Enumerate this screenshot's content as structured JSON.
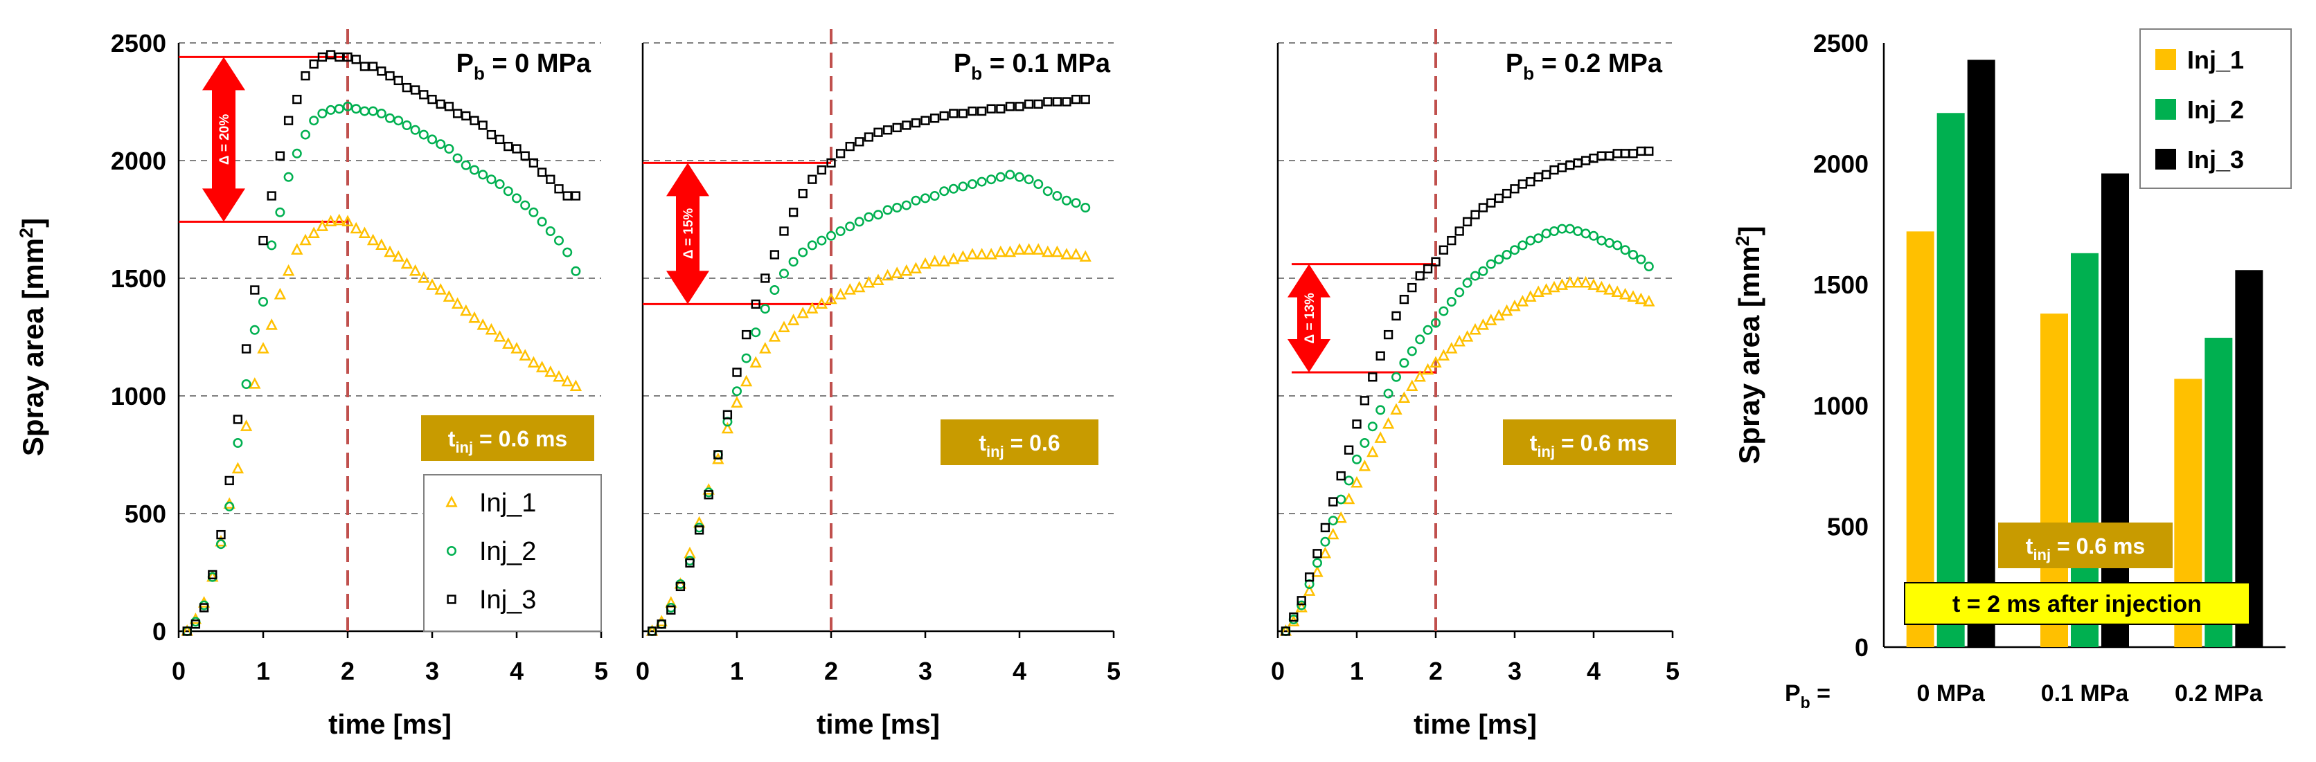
{
  "colors": {
    "inj1": "#FFC000",
    "inj2": "#00B050",
    "inj3": "#000000",
    "accent_red": "#FF0000",
    "dashed_line": "#C0504D",
    "gold_box": "#C89B00",
    "highlight": "#FFFF00",
    "grid": "#808080"
  },
  "chart_data": [
    {
      "type": "scatter",
      "title_prefix": "P",
      "title_sub": "b",
      "title_suffix": " = 0 MPa",
      "xlabel": "time [ms]",
      "ylabel_main": "Spray area [mm",
      "ylabel_sup": "2",
      "ylabel_end": "]",
      "xlim": [
        0,
        5
      ],
      "ylim": [
        0,
        2500
      ],
      "xticks": [
        "0",
        "1",
        "2",
        "3",
        "4",
        "5"
      ],
      "yticks": [
        "0",
        "500",
        "1000",
        "1500",
        "2000",
        "2500"
      ],
      "vline_x": 2,
      "delta": {
        "label": "Δ = 20%",
        "upper": 2440,
        "lower": 1740
      },
      "tinj": {
        "main": "t",
        "sub": "inj",
        "rest": " = 0.6 ms"
      },
      "legend": [
        "Inj_1",
        "Inj_2",
        "Inj_3"
      ],
      "series": [
        {
          "name": "Inj_1",
          "marker": "triangle",
          "x": [
            0.1,
            0.2,
            0.3,
            0.4,
            0.5,
            0.6,
            0.7,
            0.8,
            0.9,
            1.0,
            1.1,
            1.2,
            1.3,
            1.4,
            1.5,
            1.6,
            1.7,
            1.8,
            1.9,
            2.0,
            2.1,
            2.2,
            2.3,
            2.4,
            2.5,
            2.6,
            2.7,
            2.8,
            2.9,
            3.0,
            3.1,
            3.2,
            3.3,
            3.4,
            3.5,
            3.6,
            3.7,
            3.8,
            3.9,
            4.0,
            4.1,
            4.2,
            4.3,
            4.4,
            4.5,
            4.6,
            4.7
          ],
          "y": [
            0,
            50,
            120,
            230,
            380,
            540,
            690,
            870,
            1050,
            1200,
            1300,
            1430,
            1530,
            1620,
            1660,
            1690,
            1720,
            1740,
            1745,
            1740,
            1710,
            1690,
            1660,
            1640,
            1610,
            1590,
            1560,
            1530,
            1500,
            1470,
            1450,
            1420,
            1390,
            1360,
            1330,
            1300,
            1280,
            1250,
            1220,
            1200,
            1170,
            1140,
            1120,
            1100,
            1080,
            1060,
            1040
          ]
        },
        {
          "name": "Inj_2",
          "marker": "circle",
          "x": [
            0.1,
            0.2,
            0.3,
            0.4,
            0.5,
            0.6,
            0.7,
            0.8,
            0.9,
            1.0,
            1.1,
            1.2,
            1.3,
            1.4,
            1.5,
            1.6,
            1.7,
            1.8,
            1.9,
            2.0,
            2.1,
            2.2,
            2.3,
            2.4,
            2.5,
            2.6,
            2.7,
            2.8,
            2.9,
            3.0,
            3.1,
            3.2,
            3.3,
            3.4,
            3.5,
            3.6,
            3.7,
            3.8,
            3.9,
            4.0,
            4.1,
            4.2,
            4.3,
            4.4,
            4.5,
            4.6,
            4.7
          ],
          "y": [
            0,
            40,
            110,
            230,
            370,
            530,
            800,
            1050,
            1280,
            1400,
            1640,
            1780,
            1930,
            2030,
            2110,
            2170,
            2200,
            2215,
            2220,
            2230,
            2220,
            2210,
            2210,
            2200,
            2180,
            2170,
            2150,
            2130,
            2110,
            2090,
            2070,
            2050,
            2010,
            1980,
            1960,
            1940,
            1920,
            1900,
            1870,
            1840,
            1810,
            1780,
            1740,
            1700,
            1660,
            1610,
            1530
          ]
        },
        {
          "name": "Inj_3",
          "marker": "square",
          "x": [
            0.1,
            0.2,
            0.3,
            0.4,
            0.5,
            0.6,
            0.7,
            0.8,
            0.9,
            1.0,
            1.1,
            1.2,
            1.3,
            1.4,
            1.5,
            1.6,
            1.7,
            1.8,
            1.9,
            2.0,
            2.1,
            2.2,
            2.3,
            2.4,
            2.5,
            2.6,
            2.7,
            2.8,
            2.9,
            3.0,
            3.1,
            3.2,
            3.3,
            3.4,
            3.5,
            3.6,
            3.7,
            3.8,
            3.9,
            4.0,
            4.1,
            4.2,
            4.3,
            4.4,
            4.5,
            4.6,
            4.7
          ],
          "y": [
            0,
            30,
            100,
            240,
            410,
            640,
            900,
            1200,
            1450,
            1660,
            1850,
            2020,
            2170,
            2260,
            2360,
            2410,
            2440,
            2450,
            2440,
            2440,
            2430,
            2400,
            2400,
            2380,
            2360,
            2340,
            2310,
            2300,
            2280,
            2260,
            2240,
            2230,
            2200,
            2190,
            2170,
            2150,
            2110,
            2090,
            2060,
            2050,
            2020,
            1990,
            1950,
            1920,
            1880,
            1850,
            1850
          ]
        }
      ]
    },
    {
      "type": "scatter",
      "title_prefix": "P",
      "title_sub": "b",
      "title_suffix": " = 0.1 MPa",
      "xlabel": "time [ms]",
      "xlim": [
        0,
        5
      ],
      "ylim": [
        0,
        2500
      ],
      "xticks": [
        "0",
        "1",
        "2",
        "3",
        "4",
        "5"
      ],
      "vline_x": 2,
      "delta": {
        "label": "Δ = 15%",
        "upper": 1990,
        "lower": 1390
      },
      "tinj": {
        "main": "t",
        "sub": "inj",
        "rest": " = 0.6"
      },
      "series": [
        {
          "name": "Inj_1",
          "marker": "triangle",
          "x": [
            0.1,
            0.2,
            0.3,
            0.4,
            0.5,
            0.6,
            0.7,
            0.8,
            0.9,
            1.0,
            1.1,
            1.2,
            1.3,
            1.4,
            1.5,
            1.6,
            1.7,
            1.8,
            1.9,
            2.0,
            2.1,
            2.2,
            2.3,
            2.4,
            2.5,
            2.6,
            2.7,
            2.8,
            2.9,
            3.0,
            3.1,
            3.2,
            3.3,
            3.4,
            3.5,
            3.6,
            3.7,
            3.8,
            3.9,
            4.0,
            4.1,
            4.2,
            4.3,
            4.4,
            4.5,
            4.6,
            4.7
          ],
          "y": [
            0,
            40,
            120,
            200,
            330,
            460,
            600,
            730,
            860,
            970,
            1060,
            1140,
            1200,
            1250,
            1290,
            1320,
            1350,
            1370,
            1390,
            1410,
            1430,
            1450,
            1460,
            1480,
            1490,
            1510,
            1520,
            1530,
            1540,
            1560,
            1570,
            1570,
            1580,
            1590,
            1600,
            1600,
            1600,
            1610,
            1610,
            1620,
            1620,
            1620,
            1610,
            1610,
            1600,
            1600,
            1590
          ]
        },
        {
          "name": "Inj_2",
          "marker": "circle",
          "x": [
            0.1,
            0.2,
            0.3,
            0.4,
            0.5,
            0.6,
            0.7,
            0.8,
            0.9,
            1.0,
            1.1,
            1.2,
            1.3,
            1.4,
            1.5,
            1.6,
            1.7,
            1.8,
            1.9,
            2.0,
            2.1,
            2.2,
            2.3,
            2.4,
            2.5,
            2.6,
            2.7,
            2.8,
            2.9,
            3.0,
            3.1,
            3.2,
            3.3,
            3.4,
            3.5,
            3.6,
            3.7,
            3.8,
            3.9,
            4.0,
            4.1,
            4.2,
            4.3,
            4.4,
            4.5,
            4.6,
            4.7
          ],
          "y": [
            0,
            30,
            100,
            200,
            300,
            440,
            590,
            750,
            890,
            1020,
            1160,
            1270,
            1370,
            1450,
            1520,
            1570,
            1610,
            1640,
            1660,
            1680,
            1700,
            1720,
            1740,
            1760,
            1770,
            1790,
            1800,
            1810,
            1830,
            1840,
            1850,
            1870,
            1880,
            1890,
            1900,
            1910,
            1920,
            1930,
            1940,
            1930,
            1920,
            1900,
            1870,
            1850,
            1830,
            1820,
            1800
          ]
        },
        {
          "name": "Inj_3",
          "marker": "square",
          "x": [
            0.1,
            0.2,
            0.3,
            0.4,
            0.5,
            0.6,
            0.7,
            0.8,
            0.9,
            1.0,
            1.1,
            1.2,
            1.3,
            1.4,
            1.5,
            1.6,
            1.7,
            1.8,
            1.9,
            2.0,
            2.1,
            2.2,
            2.3,
            2.4,
            2.5,
            2.6,
            2.7,
            2.8,
            2.9,
            3.0,
            3.1,
            3.2,
            3.3,
            3.4,
            3.5,
            3.6,
            3.7,
            3.8,
            3.9,
            4.0,
            4.1,
            4.2,
            4.3,
            4.4,
            4.5,
            4.6,
            4.7
          ],
          "y": [
            0,
            30,
            90,
            190,
            290,
            430,
            580,
            750,
            920,
            1100,
            1260,
            1390,
            1500,
            1600,
            1700,
            1780,
            1860,
            1920,
            1960,
            1990,
            2030,
            2060,
            2080,
            2100,
            2120,
            2130,
            2140,
            2150,
            2160,
            2170,
            2180,
            2190,
            2200,
            2200,
            2210,
            2210,
            2220,
            2220,
            2230,
            2230,
            2240,
            2240,
            2250,
            2250,
            2250,
            2260,
            2260
          ]
        }
      ]
    },
    {
      "type": "scatter",
      "title_prefix": "P",
      "title_sub": "b",
      "title_suffix": " = 0.2 MPa",
      "xlabel": "time [ms]",
      "xlim": [
        0,
        5
      ],
      "ylim": [
        0,
        2500
      ],
      "xticks": [
        "0",
        "1",
        "2",
        "3",
        "4",
        "5"
      ],
      "vline_x": 2,
      "delta": {
        "label": "Δ = 13%",
        "upper": 1560,
        "lower": 1100
      },
      "tinj": {
        "main": "t",
        "sub": "inj",
        "rest": " = 0.6 ms"
      },
      "series": [
        {
          "name": "Inj_1",
          "marker": "triangle",
          "x": [
            0.1,
            0.2,
            0.3,
            0.4,
            0.5,
            0.6,
            0.7,
            0.8,
            0.9,
            1.0,
            1.1,
            1.2,
            1.3,
            1.4,
            1.5,
            1.6,
            1.7,
            1.8,
            1.9,
            2.0,
            2.1,
            2.2,
            2.3,
            2.4,
            2.5,
            2.6,
            2.7,
            2.8,
            2.9,
            3.0,
            3.1,
            3.2,
            3.3,
            3.4,
            3.5,
            3.6,
            3.7,
            3.8,
            3.9,
            4.0,
            4.1,
            4.2,
            4.3,
            4.4,
            4.5,
            4.6,
            4.7
          ],
          "y": [
            0,
            40,
            100,
            170,
            250,
            330,
            410,
            480,
            560,
            630,
            700,
            760,
            820,
            880,
            940,
            990,
            1040,
            1080,
            1110,
            1140,
            1170,
            1200,
            1230,
            1250,
            1280,
            1300,
            1320,
            1340,
            1360,
            1380,
            1400,
            1420,
            1440,
            1450,
            1460,
            1470,
            1480,
            1480,
            1480,
            1470,
            1460,
            1450,
            1440,
            1430,
            1420,
            1410,
            1400
          ]
        },
        {
          "name": "Inj_2",
          "marker": "circle",
          "x": [
            0.1,
            0.2,
            0.3,
            0.4,
            0.5,
            0.6,
            0.7,
            0.8,
            0.9,
            1.0,
            1.1,
            1.2,
            1.3,
            1.4,
            1.5,
            1.6,
            1.7,
            1.8,
            1.9,
            2.0,
            2.1,
            2.2,
            2.3,
            2.4,
            2.5,
            2.6,
            2.7,
            2.8,
            2.9,
            3.0,
            3.1,
            3.2,
            3.3,
            3.4,
            3.5,
            3.6,
            3.7,
            3.8,
            3.9,
            4.0,
            4.1,
            4.2,
            4.3,
            4.4,
            4.5,
            4.6,
            4.7
          ],
          "y": [
            0,
            50,
            110,
            200,
            290,
            380,
            470,
            560,
            640,
            730,
            800,
            870,
            940,
            1010,
            1080,
            1140,
            1190,
            1240,
            1280,
            1310,
            1360,
            1400,
            1440,
            1480,
            1510,
            1530,
            1560,
            1580,
            1600,
            1620,
            1640,
            1660,
            1670,
            1690,
            1700,
            1710,
            1710,
            1700,
            1690,
            1680,
            1660,
            1650,
            1640,
            1620,
            1600,
            1580,
            1550
          ]
        },
        {
          "name": "Inj_3",
          "marker": "square",
          "x": [
            0.1,
            0.2,
            0.3,
            0.4,
            0.5,
            0.6,
            0.7,
            0.8,
            0.9,
            1.0,
            1.1,
            1.2,
            1.3,
            1.4,
            1.5,
            1.6,
            1.7,
            1.8,
            1.9,
            2.0,
            2.1,
            2.2,
            2.3,
            2.4,
            2.5,
            2.6,
            2.7,
            2.8,
            2.9,
            3.0,
            3.1,
            3.2,
            3.3,
            3.4,
            3.5,
            3.6,
            3.7,
            3.8,
            3.9,
            4.0,
            4.1,
            4.2,
            4.3,
            4.4,
            4.5,
            4.6,
            4.7
          ],
          "y": [
            0,
            60,
            130,
            230,
            330,
            440,
            550,
            660,
            770,
            880,
            980,
            1080,
            1170,
            1260,
            1340,
            1410,
            1460,
            1510,
            1540,
            1570,
            1620,
            1660,
            1700,
            1740,
            1770,
            1800,
            1820,
            1840,
            1860,
            1880,
            1900,
            1910,
            1930,
            1940,
            1960,
            1970,
            1980,
            1990,
            2000,
            2010,
            2020,
            2020,
            2030,
            2030,
            2030,
            2040,
            2040
          ]
        }
      ]
    },
    {
      "type": "bar",
      "ylabel_main": "Spray area [mm",
      "ylabel_sup": "2",
      "ylabel_end": "]",
      "ylim": [
        0,
        2500
      ],
      "yticks": [
        "0",
        "500",
        "1000",
        "1500",
        "2000",
        "2500"
      ],
      "categories": [
        "0 MPa",
        "0.1 MPa",
        "0.2 MPa"
      ],
      "xlabel_prefix": "P",
      "xlabel_sub": "b",
      "xlabel_suffix": " =",
      "tinj": {
        "main": "t",
        "sub": "inj",
        "rest": " = 0.6 ms"
      },
      "note": "t = 2 ms after injection",
      "legend": [
        "Inj_1",
        "Inj_2",
        "Inj_3"
      ],
      "series": [
        {
          "name": "Inj_1",
          "values": [
            1720,
            1380,
            1110
          ]
        },
        {
          "name": "Inj_2",
          "values": [
            2210,
            1630,
            1280
          ]
        },
        {
          "name": "Inj_3",
          "values": [
            2430,
            1960,
            1560
          ]
        }
      ]
    }
  ]
}
